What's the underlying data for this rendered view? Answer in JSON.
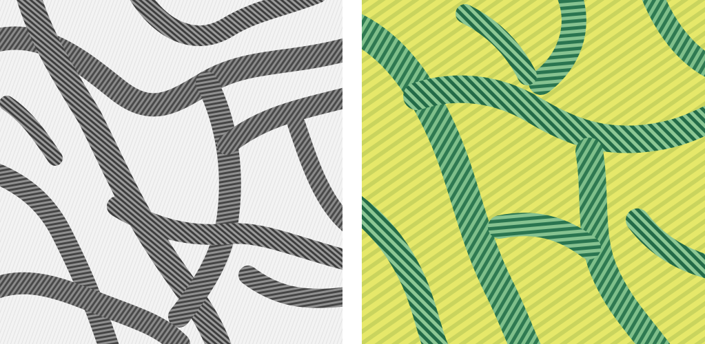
{
  "panels": [
    {
      "id": "left",
      "kind": "grayscale-stripe-texture",
      "colors": {
        "background": "#f4f4f4",
        "stripe": "#5a5a5a",
        "stripe_dark": "#3c3c3c"
      }
    },
    {
      "id": "right",
      "kind": "colored-stripe-texture",
      "colors": {
        "background": "#e8ea6a",
        "stripe": "#3c8a5a",
        "stripe_dark": "#1f6a48",
        "highlight": "#f2f27a"
      }
    }
  ]
}
